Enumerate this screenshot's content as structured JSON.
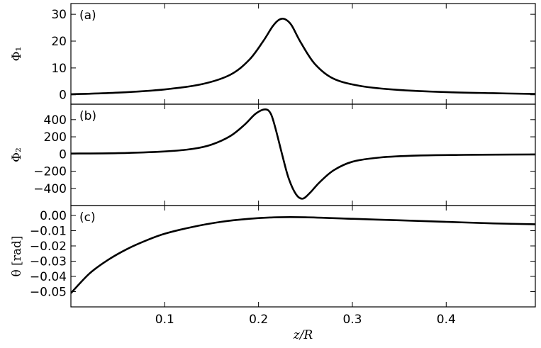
{
  "chart_data": [
    {
      "type": "line",
      "panel": "(a)",
      "ylabel": "Φ₁",
      "xlim": [
        0.0,
        0.495
      ],
      "ylim": [
        -3.5,
        34
      ],
      "yticks": [
        0,
        10,
        20,
        30
      ],
      "ytick_labels": [
        "0",
        "10",
        "20",
        "30"
      ],
      "grid": false,
      "series": [
        {
          "x": [
            0.0,
            0.05,
            0.1,
            0.14,
            0.17,
            0.19,
            0.205,
            0.215,
            0.222,
            0.228,
            0.235,
            0.245,
            0.26,
            0.28,
            0.31,
            0.35,
            0.4,
            0.45,
            0.495
          ],
          "y": [
            0.2,
            0.8,
            2.0,
            4.0,
            7.5,
            13.0,
            20.0,
            25.5,
            28.0,
            28.2,
            26.0,
            19.5,
            11.5,
            6.0,
            3.2,
            1.8,
            1.0,
            0.6,
            0.3
          ]
        }
      ]
    },
    {
      "type": "line",
      "panel": "(b)",
      "ylabel": "Φ₂",
      "xlim": [
        0.0,
        0.495
      ],
      "ylim": [
        -600,
        580
      ],
      "yticks": [
        -400,
        -200,
        0,
        200,
        400
      ],
      "ytick_labels": [
        "−400",
        "−200",
        "0",
        "200",
        "400"
      ],
      "grid": false,
      "series": [
        {
          "x": [
            0.0,
            0.05,
            0.1,
            0.13,
            0.15,
            0.17,
            0.185,
            0.197,
            0.207,
            0.213,
            0.218,
            0.225,
            0.232,
            0.24,
            0.247,
            0.255,
            0.265,
            0.28,
            0.3,
            0.33,
            0.37,
            0.42,
            0.47,
            0.495
          ],
          "y": [
            5,
            10,
            30,
            60,
            110,
            210,
            340,
            470,
            520,
            470,
            300,
            0,
            -280,
            -470,
            -520,
            -450,
            -330,
            -190,
            -90,
            -40,
            -18,
            -10,
            -6,
            -5
          ]
        }
      ]
    },
    {
      "type": "line",
      "panel": "(c)",
      "ylabel": "θ [rad]",
      "xlabel": "z/R",
      "xlim": [
        0.0,
        0.495
      ],
      "ylim": [
        -0.06,
        0.0065
      ],
      "xticks": [
        0.1,
        0.2,
        0.3,
        0.4
      ],
      "xtick_labels": [
        "0.1",
        "0.2",
        "0.3",
        "0.4"
      ],
      "yticks": [
        0.0,
        -0.01,
        -0.02,
        -0.03,
        -0.04,
        -0.05
      ],
      "ytick_labels": [
        "0.00",
        "−0.01",
        "−0.02",
        "−0.03",
        "−0.04",
        "−0.05"
      ],
      "grid": false,
      "series": [
        {
          "x": [
            0.0,
            0.02,
            0.04,
            0.06,
            0.08,
            0.1,
            0.13,
            0.16,
            0.19,
            0.22,
            0.25,
            0.3,
            0.35,
            0.4,
            0.45,
            0.495
          ],
          "y": [
            -0.051,
            -0.038,
            -0.029,
            -0.022,
            -0.0165,
            -0.012,
            -0.0075,
            -0.0042,
            -0.0022,
            -0.0012,
            -0.0012,
            -0.0022,
            -0.0032,
            -0.0042,
            -0.0052,
            -0.0058
          ]
        }
      ]
    }
  ]
}
